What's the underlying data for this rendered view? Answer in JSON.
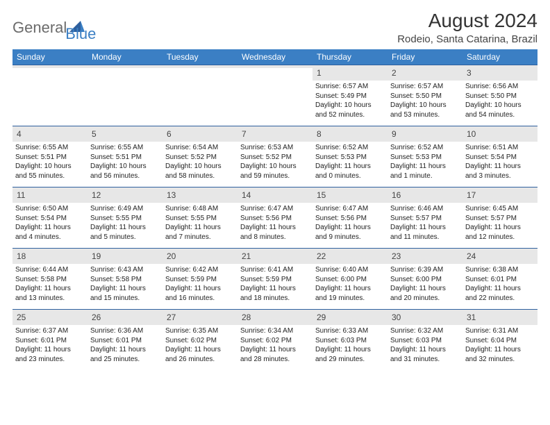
{
  "brand": {
    "general": "General",
    "blue": "Blue"
  },
  "title": "August 2024",
  "location": "Rodeio, Santa Catarina, Brazil",
  "colors": {
    "header_bg": "#3b7fc4",
    "header_border_top": "#2d5f9e",
    "daynum_bg": "#e7e7e7",
    "text": "#222222",
    "logo_gray": "#6b6b6b",
    "logo_blue": "#3b7fc4"
  },
  "day_names": [
    "Sunday",
    "Monday",
    "Tuesday",
    "Wednesday",
    "Thursday",
    "Friday",
    "Saturday"
  ],
  "weeks": [
    [
      {
        "empty": true
      },
      {
        "empty": true
      },
      {
        "empty": true
      },
      {
        "empty": true
      },
      {
        "n": "1",
        "sunrise": "Sunrise: 6:57 AM",
        "sunset": "Sunset: 5:49 PM",
        "dl1": "Daylight: 10 hours",
        "dl2": "and 52 minutes."
      },
      {
        "n": "2",
        "sunrise": "Sunrise: 6:57 AM",
        "sunset": "Sunset: 5:50 PM",
        "dl1": "Daylight: 10 hours",
        "dl2": "and 53 minutes."
      },
      {
        "n": "3",
        "sunrise": "Sunrise: 6:56 AM",
        "sunset": "Sunset: 5:50 PM",
        "dl1": "Daylight: 10 hours",
        "dl2": "and 54 minutes."
      }
    ],
    [
      {
        "n": "4",
        "sunrise": "Sunrise: 6:55 AM",
        "sunset": "Sunset: 5:51 PM",
        "dl1": "Daylight: 10 hours",
        "dl2": "and 55 minutes."
      },
      {
        "n": "5",
        "sunrise": "Sunrise: 6:55 AM",
        "sunset": "Sunset: 5:51 PM",
        "dl1": "Daylight: 10 hours",
        "dl2": "and 56 minutes."
      },
      {
        "n": "6",
        "sunrise": "Sunrise: 6:54 AM",
        "sunset": "Sunset: 5:52 PM",
        "dl1": "Daylight: 10 hours",
        "dl2": "and 58 minutes."
      },
      {
        "n": "7",
        "sunrise": "Sunrise: 6:53 AM",
        "sunset": "Sunset: 5:52 PM",
        "dl1": "Daylight: 10 hours",
        "dl2": "and 59 minutes."
      },
      {
        "n": "8",
        "sunrise": "Sunrise: 6:52 AM",
        "sunset": "Sunset: 5:53 PM",
        "dl1": "Daylight: 11 hours",
        "dl2": "and 0 minutes."
      },
      {
        "n": "9",
        "sunrise": "Sunrise: 6:52 AM",
        "sunset": "Sunset: 5:53 PM",
        "dl1": "Daylight: 11 hours",
        "dl2": "and 1 minute."
      },
      {
        "n": "10",
        "sunrise": "Sunrise: 6:51 AM",
        "sunset": "Sunset: 5:54 PM",
        "dl1": "Daylight: 11 hours",
        "dl2": "and 3 minutes."
      }
    ],
    [
      {
        "n": "11",
        "sunrise": "Sunrise: 6:50 AM",
        "sunset": "Sunset: 5:54 PM",
        "dl1": "Daylight: 11 hours",
        "dl2": "and 4 minutes."
      },
      {
        "n": "12",
        "sunrise": "Sunrise: 6:49 AM",
        "sunset": "Sunset: 5:55 PM",
        "dl1": "Daylight: 11 hours",
        "dl2": "and 5 minutes."
      },
      {
        "n": "13",
        "sunrise": "Sunrise: 6:48 AM",
        "sunset": "Sunset: 5:55 PM",
        "dl1": "Daylight: 11 hours",
        "dl2": "and 7 minutes."
      },
      {
        "n": "14",
        "sunrise": "Sunrise: 6:47 AM",
        "sunset": "Sunset: 5:56 PM",
        "dl1": "Daylight: 11 hours",
        "dl2": "and 8 minutes."
      },
      {
        "n": "15",
        "sunrise": "Sunrise: 6:47 AM",
        "sunset": "Sunset: 5:56 PM",
        "dl1": "Daylight: 11 hours",
        "dl2": "and 9 minutes."
      },
      {
        "n": "16",
        "sunrise": "Sunrise: 6:46 AM",
        "sunset": "Sunset: 5:57 PM",
        "dl1": "Daylight: 11 hours",
        "dl2": "and 11 minutes."
      },
      {
        "n": "17",
        "sunrise": "Sunrise: 6:45 AM",
        "sunset": "Sunset: 5:57 PM",
        "dl1": "Daylight: 11 hours",
        "dl2": "and 12 minutes."
      }
    ],
    [
      {
        "n": "18",
        "sunrise": "Sunrise: 6:44 AM",
        "sunset": "Sunset: 5:58 PM",
        "dl1": "Daylight: 11 hours",
        "dl2": "and 13 minutes."
      },
      {
        "n": "19",
        "sunrise": "Sunrise: 6:43 AM",
        "sunset": "Sunset: 5:58 PM",
        "dl1": "Daylight: 11 hours",
        "dl2": "and 15 minutes."
      },
      {
        "n": "20",
        "sunrise": "Sunrise: 6:42 AM",
        "sunset": "Sunset: 5:59 PM",
        "dl1": "Daylight: 11 hours",
        "dl2": "and 16 minutes."
      },
      {
        "n": "21",
        "sunrise": "Sunrise: 6:41 AM",
        "sunset": "Sunset: 5:59 PM",
        "dl1": "Daylight: 11 hours",
        "dl2": "and 18 minutes."
      },
      {
        "n": "22",
        "sunrise": "Sunrise: 6:40 AM",
        "sunset": "Sunset: 6:00 PM",
        "dl1": "Daylight: 11 hours",
        "dl2": "and 19 minutes."
      },
      {
        "n": "23",
        "sunrise": "Sunrise: 6:39 AM",
        "sunset": "Sunset: 6:00 PM",
        "dl1": "Daylight: 11 hours",
        "dl2": "and 20 minutes."
      },
      {
        "n": "24",
        "sunrise": "Sunrise: 6:38 AM",
        "sunset": "Sunset: 6:01 PM",
        "dl1": "Daylight: 11 hours",
        "dl2": "and 22 minutes."
      }
    ],
    [
      {
        "n": "25",
        "sunrise": "Sunrise: 6:37 AM",
        "sunset": "Sunset: 6:01 PM",
        "dl1": "Daylight: 11 hours",
        "dl2": "and 23 minutes."
      },
      {
        "n": "26",
        "sunrise": "Sunrise: 6:36 AM",
        "sunset": "Sunset: 6:01 PM",
        "dl1": "Daylight: 11 hours",
        "dl2": "and 25 minutes."
      },
      {
        "n": "27",
        "sunrise": "Sunrise: 6:35 AM",
        "sunset": "Sunset: 6:02 PM",
        "dl1": "Daylight: 11 hours",
        "dl2": "and 26 minutes."
      },
      {
        "n": "28",
        "sunrise": "Sunrise: 6:34 AM",
        "sunset": "Sunset: 6:02 PM",
        "dl1": "Daylight: 11 hours",
        "dl2": "and 28 minutes."
      },
      {
        "n": "29",
        "sunrise": "Sunrise: 6:33 AM",
        "sunset": "Sunset: 6:03 PM",
        "dl1": "Daylight: 11 hours",
        "dl2": "and 29 minutes."
      },
      {
        "n": "30",
        "sunrise": "Sunrise: 6:32 AM",
        "sunset": "Sunset: 6:03 PM",
        "dl1": "Daylight: 11 hours",
        "dl2": "and 31 minutes."
      },
      {
        "n": "31",
        "sunrise": "Sunrise: 6:31 AM",
        "sunset": "Sunset: 6:04 PM",
        "dl1": "Daylight: 11 hours",
        "dl2": "and 32 minutes."
      }
    ]
  ]
}
